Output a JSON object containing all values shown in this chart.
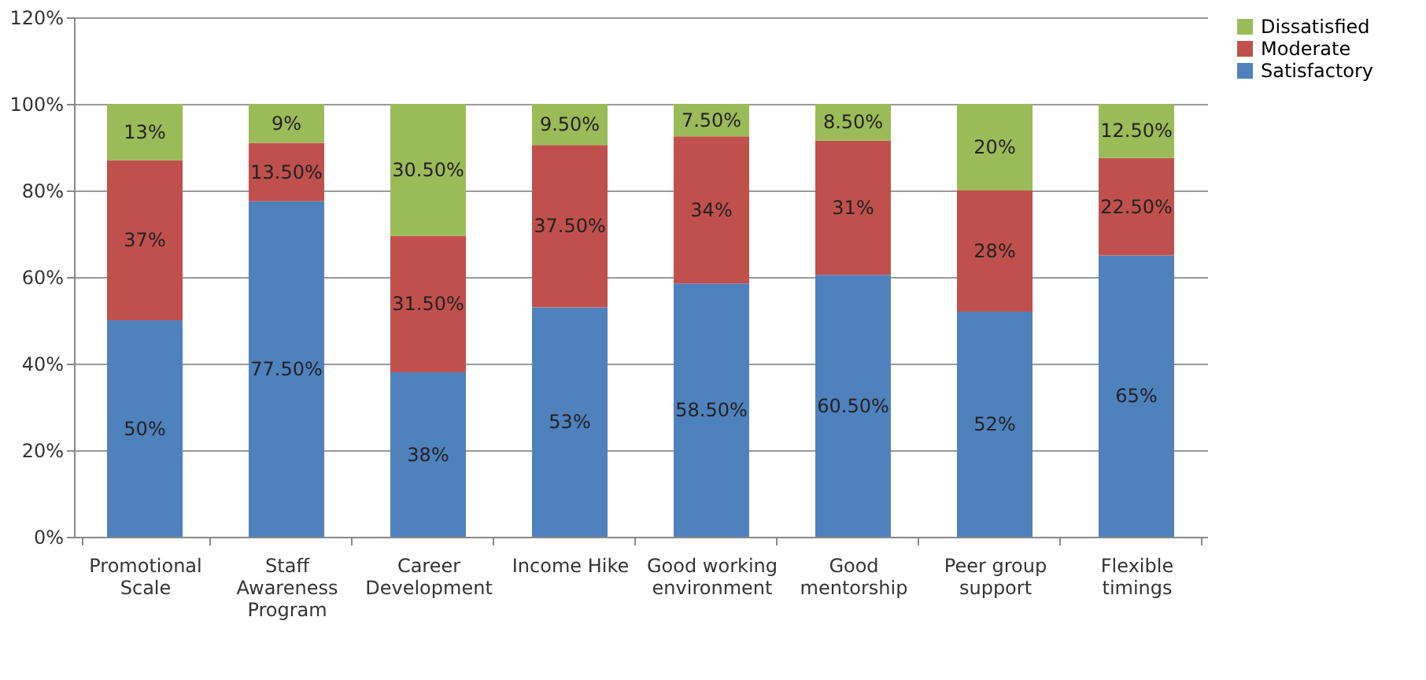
{
  "chart_data": {
    "type": "bar",
    "stacked": true,
    "categories": [
      "Promotional Scale",
      "Staff Awareness Program",
      "Career Development",
      "Income Hike",
      "Good working environment",
      "Good mentorship",
      "Peer group support",
      "Flexible timings"
    ],
    "series": [
      {
        "name": "Satisfactory",
        "color": "#4f81bd",
        "values": [
          50,
          77.5,
          38,
          53,
          58.5,
          60.5,
          52,
          65
        ],
        "value_labels": [
          "50%",
          "77.50%",
          "38%",
          "53%",
          "58.50%",
          "60.50%",
          "52%",
          "65%"
        ]
      },
      {
        "name": "Moderate",
        "color": "#c0504d",
        "values": [
          37,
          13.5,
          31.5,
          37.5,
          34,
          31,
          28,
          22.5
        ],
        "value_labels": [
          "37%",
          "13.50%",
          "31.50%",
          "37.50%",
          "34%",
          "31%",
          "28%",
          "22.50%"
        ]
      },
      {
        "name": "Dissatisfied",
        "color": "#9bbb59",
        "values": [
          13,
          9,
          30.5,
          9.5,
          7.5,
          8.5,
          20,
          12.5
        ],
        "value_labels": [
          "13%",
          "9%",
          "30.50%",
          "9.50%",
          "7.50%",
          "8.50%",
          "20%",
          "12.50%"
        ]
      }
    ],
    "ylim": [
      0,
      120
    ],
    "yticks": [
      {
        "value": 0,
        "label": "0%"
      },
      {
        "value": 20,
        "label": "20%"
      },
      {
        "value": 40,
        "label": "40%"
      },
      {
        "value": 60,
        "label": "60%"
      },
      {
        "value": 80,
        "label": "80%"
      },
      {
        "value": 100,
        "label": "100%"
      },
      {
        "value": 120,
        "label": "120%"
      }
    ],
    "grid": "y",
    "legend": "right"
  }
}
